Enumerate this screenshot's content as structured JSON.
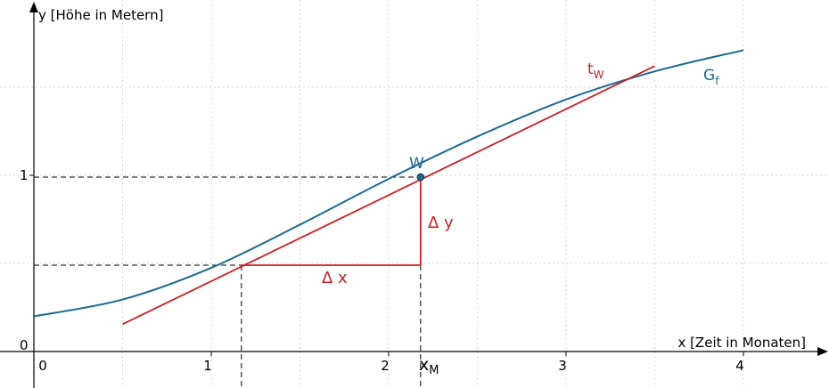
{
  "axes": {
    "x_label": "x [Zeit in Monaten]",
    "y_label": "y [Höhe in Metern]",
    "origin_label": "0",
    "x_ticks": [
      "0",
      "1",
      "2",
      "3",
      "4"
    ],
    "y_ticks": [
      "1"
    ]
  },
  "labels": {
    "point": "W",
    "xM_main": "x",
    "xM_sub": "M",
    "tangent_main": "t",
    "tangent_sub": "W",
    "graph_main": "G",
    "graph_sub": "f",
    "delta_x": "Δ x",
    "delta_y": "Δ y"
  },
  "colors": {
    "graph": "#1a6a93",
    "tangent": "#cc1f25",
    "axis": "#000000",
    "grid": "#d6d6d6",
    "helper": "#000000"
  },
  "chart_data": {
    "type": "line",
    "xlim": [
      -0.2,
      4.45
    ],
    "ylim": [
      -0.2,
      1.97
    ],
    "grid": true,
    "series": [
      {
        "name": "G_f",
        "x": [
          0,
          0.5,
          1,
          1.5,
          2,
          2.5,
          3,
          3.5,
          4
        ],
        "y": [
          0.2,
          0.295,
          0.475,
          0.72,
          0.98,
          1.22,
          1.43,
          1.59,
          1.71
        ]
      },
      {
        "name": "t_W",
        "x": [
          0.5,
          3.5
        ],
        "y": [
          0.155,
          1.62
        ]
      }
    ],
    "point_W": {
      "x": 2.18,
      "y": 0.99
    },
    "x_M": 2.18,
    "slope_triangle": {
      "x1": 1.17,
      "y1": 0.49,
      "x2": 2.18,
      "y2": 0.99
    }
  }
}
